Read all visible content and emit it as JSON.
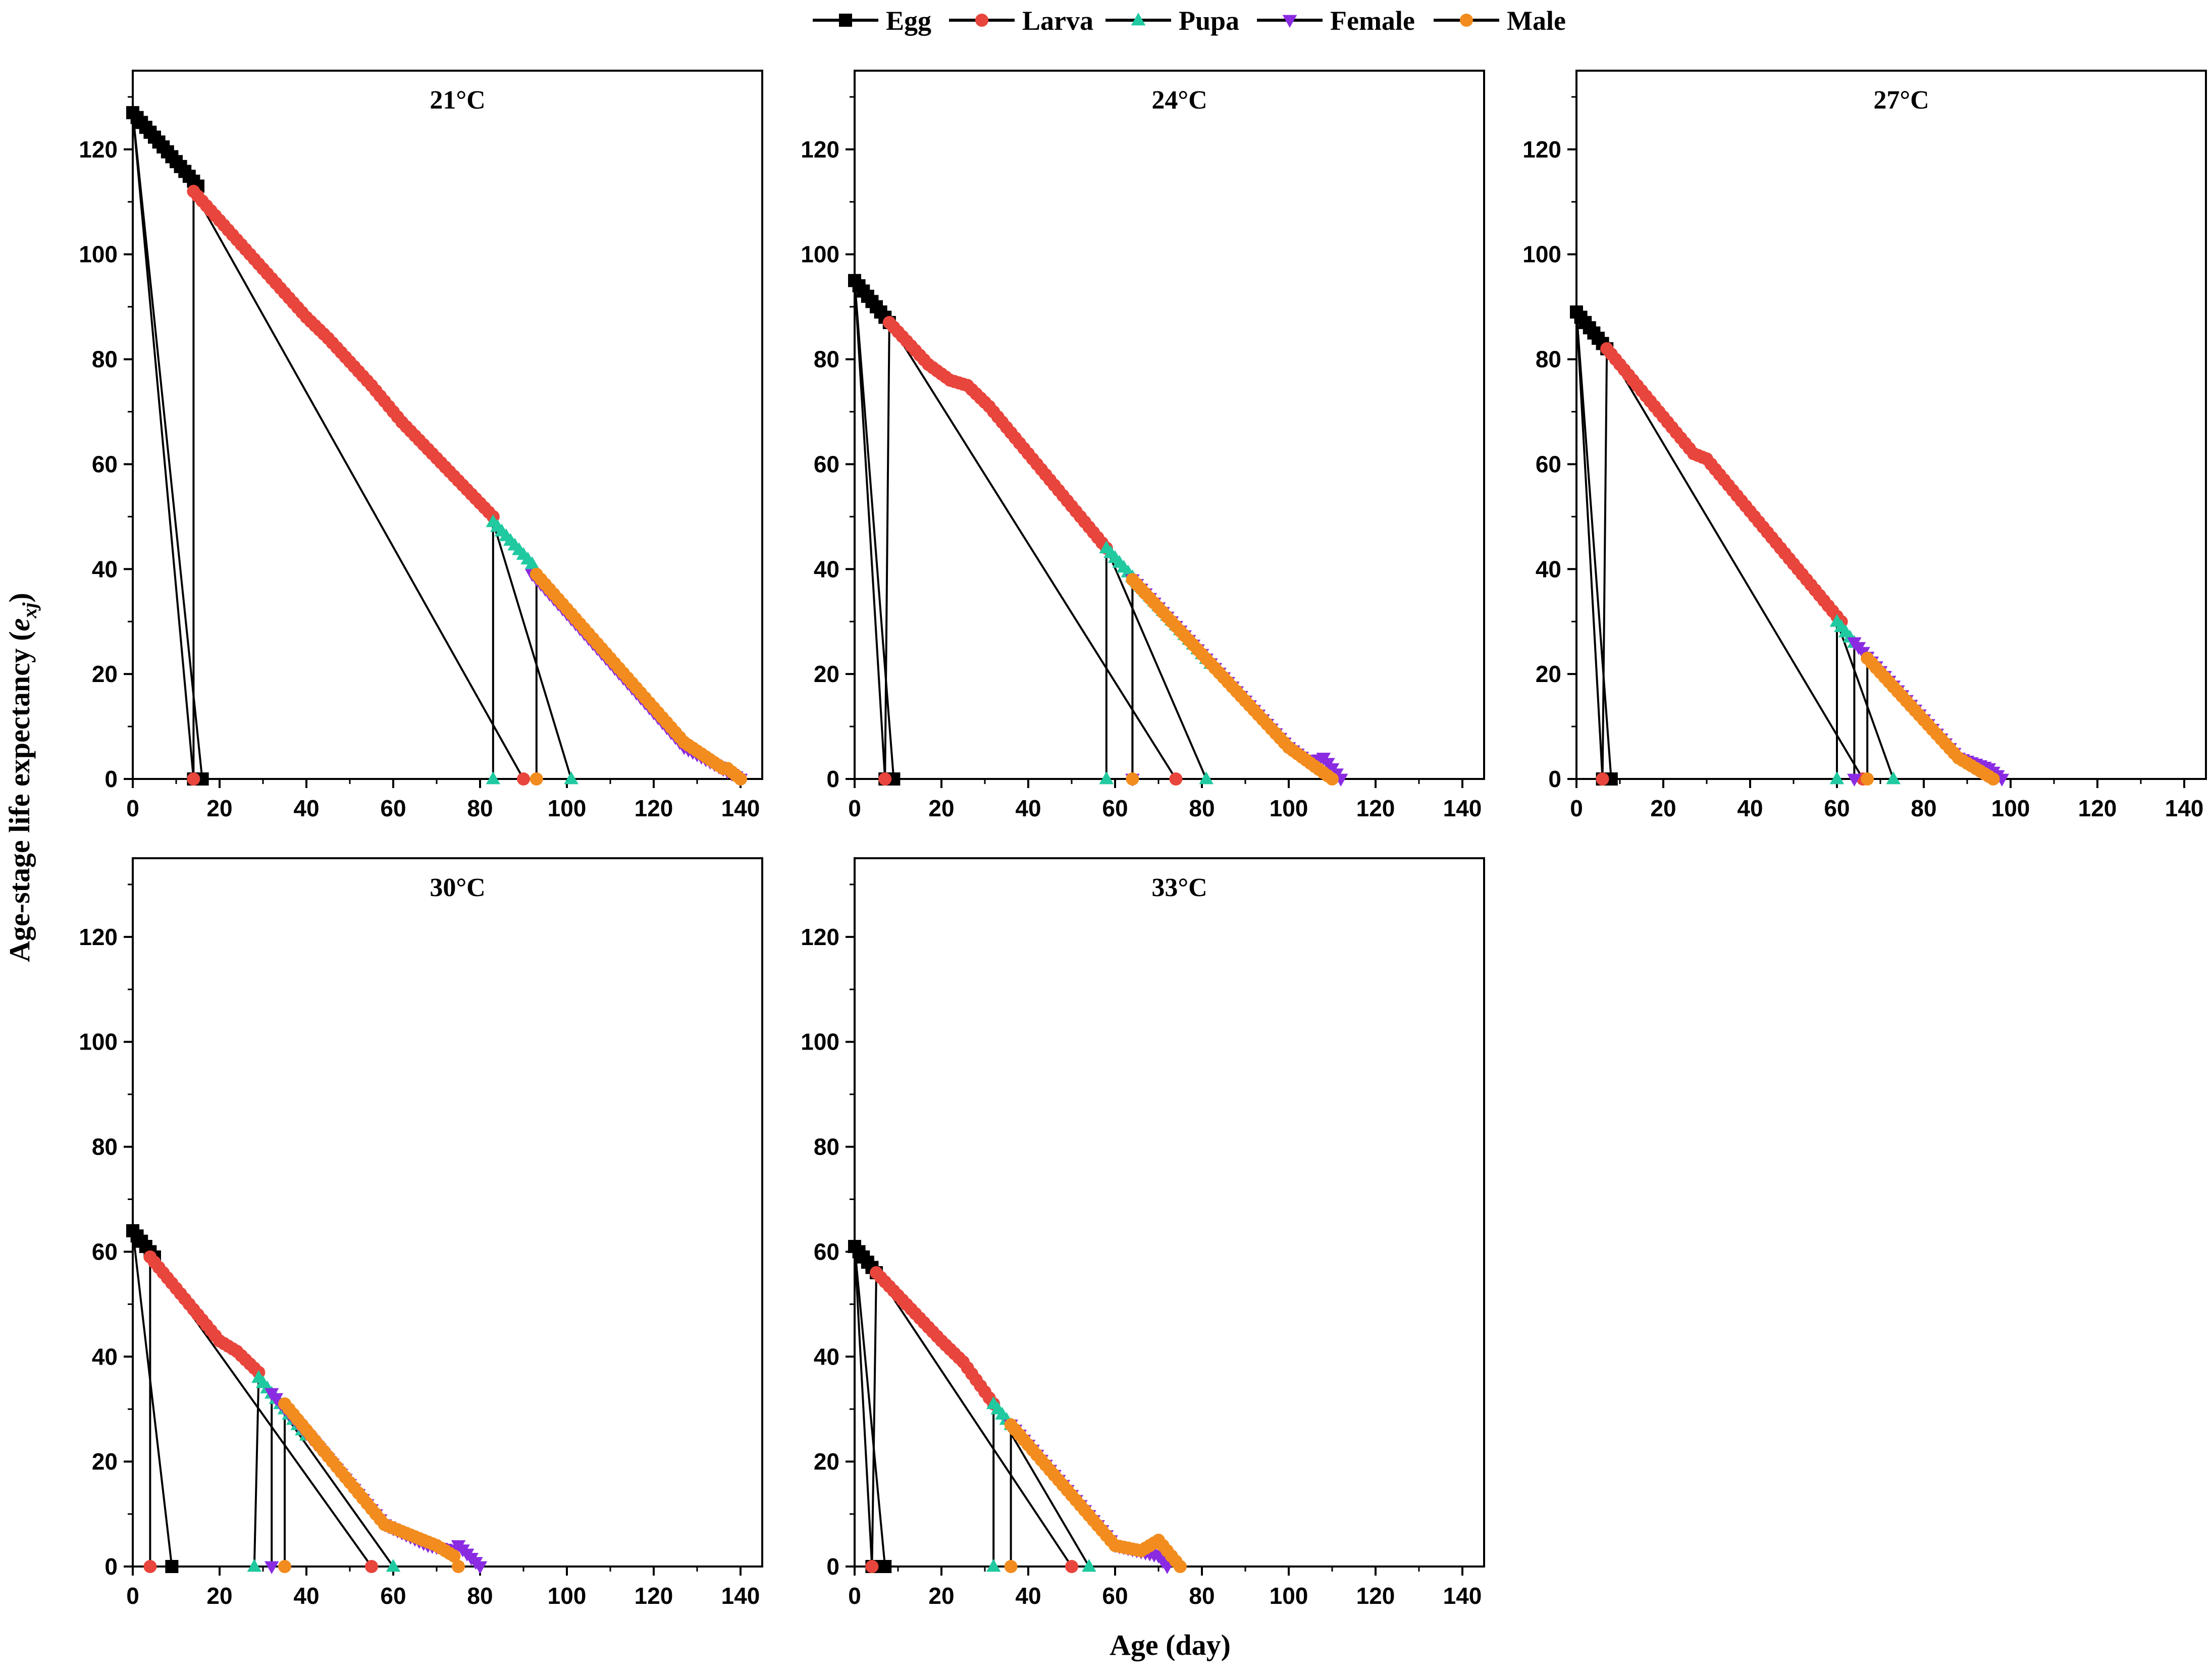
{
  "legend": {
    "items": [
      {
        "name": "Egg",
        "color": "#000000",
        "marker": "square"
      },
      {
        "name": "Larva",
        "color": "#e8453c",
        "marker": "circle"
      },
      {
        "name": "Pupa",
        "color": "#20c9a0",
        "marker": "triangle-up"
      },
      {
        "name": "Female",
        "color": "#8a2be2",
        "marker": "triangle-down"
      },
      {
        "name": "Male",
        "color": "#f28c1e",
        "marker": "circle"
      }
    ]
  },
  "axis_titles": {
    "y": "Age-stage life expectancy (",
    "y_symbol": "e",
    "y_subscript": "xj",
    "y_close": ")",
    "x": "Age (day)"
  },
  "chart_data": [
    {
      "type": "line",
      "title": "21°C",
      "xlim": [
        0,
        145
      ],
      "ylim": [
        0,
        135
      ],
      "xticks": [
        0,
        20,
        40,
        60,
        80,
        100,
        120,
        140
      ],
      "yticks": [
        0,
        20,
        40,
        60,
        80,
        100,
        120
      ],
      "series": [
        {
          "name": "Egg",
          "x": [
            0,
            15
          ],
          "y": [
            127,
            113
          ],
          "drop_x": [
            14,
            16
          ]
        },
        {
          "name": "Larva",
          "x": [
            14,
            40,
            45,
            55,
            62,
            83
          ],
          "y": [
            112,
            88,
            84,
            75,
            68,
            50
          ],
          "drop_x": [
            14,
            90
          ]
        },
        {
          "name": "Pupa",
          "x": [
            83,
            92
          ],
          "y": [
            49,
            41
          ],
          "drop_x": [
            83,
            101
          ]
        },
        {
          "name": "Female",
          "x": [
            92,
            127,
            140
          ],
          "y": [
            39,
            6,
            0
          ]
        },
        {
          "name": "Male",
          "x": [
            93,
            127,
            136,
            137,
            140
          ],
          "y": [
            39,
            7,
            2,
            2,
            0
          ],
          "drop_x": [
            93
          ]
        }
      ]
    },
    {
      "type": "line",
      "title": "24°C",
      "xlim": [
        0,
        145
      ],
      "ylim": [
        0,
        135
      ],
      "xticks": [
        0,
        20,
        40,
        60,
        80,
        100,
        120,
        140
      ],
      "yticks": [
        0,
        20,
        40,
        60,
        80,
        100,
        120
      ],
      "series": [
        {
          "name": "Egg",
          "x": [
            0,
            8
          ],
          "y": [
            95,
            87
          ],
          "drop_x": [
            7,
            9
          ]
        },
        {
          "name": "Larva",
          "x": [
            8,
            17,
            22,
            26,
            31,
            58
          ],
          "y": [
            87,
            79,
            76,
            75,
            71,
            44
          ],
          "drop_x": [
            7,
            74
          ]
        },
        {
          "name": "Pupa",
          "x": [
            58,
            82
          ],
          "y": [
            44,
            22
          ],
          "drop_x": [
            58,
            81
          ]
        },
        {
          "name": "Female",
          "x": [
            64,
            100,
            105,
            108,
            112
          ],
          "y": [
            38,
            6,
            3,
            4,
            0
          ],
          "drop_x": [
            64
          ]
        },
        {
          "name": "Male",
          "x": [
            64,
            100,
            110
          ],
          "y": [
            38,
            6,
            0
          ],
          "drop_x": [
            64
          ]
        }
      ]
    },
    {
      "type": "line",
      "title": "27°C",
      "xlim": [
        0,
        145
      ],
      "ylim": [
        0,
        135
      ],
      "xticks": [
        0,
        20,
        40,
        60,
        80,
        100,
        120,
        140
      ],
      "yticks": [
        0,
        20,
        40,
        60,
        80,
        100,
        120
      ],
      "series": [
        {
          "name": "Egg",
          "x": [
            0,
            7
          ],
          "y": [
            89,
            82
          ],
          "drop_x": [
            6,
            8
          ]
        },
        {
          "name": "Larva",
          "x": [
            7,
            27,
            30,
            61
          ],
          "y": [
            82,
            62,
            61,
            30
          ],
          "drop_x": [
            6,
            66
          ]
        },
        {
          "name": "Pupa",
          "x": [
            60,
            64
          ],
          "y": [
            30,
            26
          ],
          "drop_x": [
            60,
            73
          ]
        },
        {
          "name": "Female",
          "x": [
            64,
            88,
            95,
            98
          ],
          "y": [
            26,
            4,
            2,
            0
          ],
          "drop_x": [
            64
          ]
        },
        {
          "name": "Male",
          "x": [
            67,
            88,
            96
          ],
          "y": [
            23,
            4,
            0
          ],
          "drop_x": [
            67
          ]
        }
      ]
    },
    {
      "type": "line",
      "title": "30°C",
      "xlim": [
        0,
        145
      ],
      "ylim": [
        0,
        135
      ],
      "xticks": [
        0,
        20,
        40,
        60,
        80,
        100,
        120,
        140
      ],
      "yticks": [
        0,
        20,
        40,
        60,
        80,
        100,
        120
      ],
      "series": [
        {
          "name": "Egg",
          "x": [
            0,
            5
          ],
          "y": [
            64,
            59
          ],
          "drop_x": [
            9
          ]
        },
        {
          "name": "Larva",
          "x": [
            4,
            20,
            24,
            29
          ],
          "y": [
            59,
            43,
            41,
            37
          ],
          "drop_x": [
            4,
            55
          ]
        },
        {
          "name": "Pupa",
          "x": [
            29,
            40
          ],
          "y": [
            36,
            25
          ],
          "drop_x": [
            28,
            60
          ]
        },
        {
          "name": "Female",
          "x": [
            32,
            58,
            68,
            74,
            75,
            80
          ],
          "y": [
            33,
            8,
            4,
            3,
            4,
            0
          ],
          "drop_x": [
            32
          ]
        },
        {
          "name": "Male",
          "x": [
            35,
            58,
            70,
            74,
            75
          ],
          "y": [
            31,
            8,
            4,
            2,
            0
          ],
          "drop_x": [
            35
          ]
        }
      ]
    },
    {
      "type": "line",
      "title": "33°C",
      "xlim": [
        0,
        145
      ],
      "ylim": [
        0,
        135
      ],
      "xticks": [
        0,
        20,
        40,
        60,
        80,
        100,
        120,
        140
      ],
      "yticks": [
        0,
        20,
        40,
        60,
        80,
        100,
        120
      ],
      "series": [
        {
          "name": "Egg",
          "x": [
            0,
            5
          ],
          "y": [
            61,
            56
          ],
          "drop_x": [
            4,
            7
          ]
        },
        {
          "name": "Larva",
          "x": [
            5,
            20,
            25,
            32
          ],
          "y": [
            56,
            43,
            39,
            31
          ],
          "drop_x": [
            4,
            50
          ]
        },
        {
          "name": "Pupa",
          "x": [
            32,
            36
          ],
          "y": [
            31,
            27
          ],
          "drop_x": [
            32,
            54
          ]
        },
        {
          "name": "Female",
          "x": [
            36,
            60,
            70,
            72
          ],
          "y": [
            27,
            4,
            2,
            0
          ]
        },
        {
          "name": "Male",
          "x": [
            36,
            60,
            66,
            70,
            75
          ],
          "y": [
            27,
            4,
            3,
            5,
            0
          ],
          "drop_x": [
            36
          ]
        }
      ]
    }
  ]
}
